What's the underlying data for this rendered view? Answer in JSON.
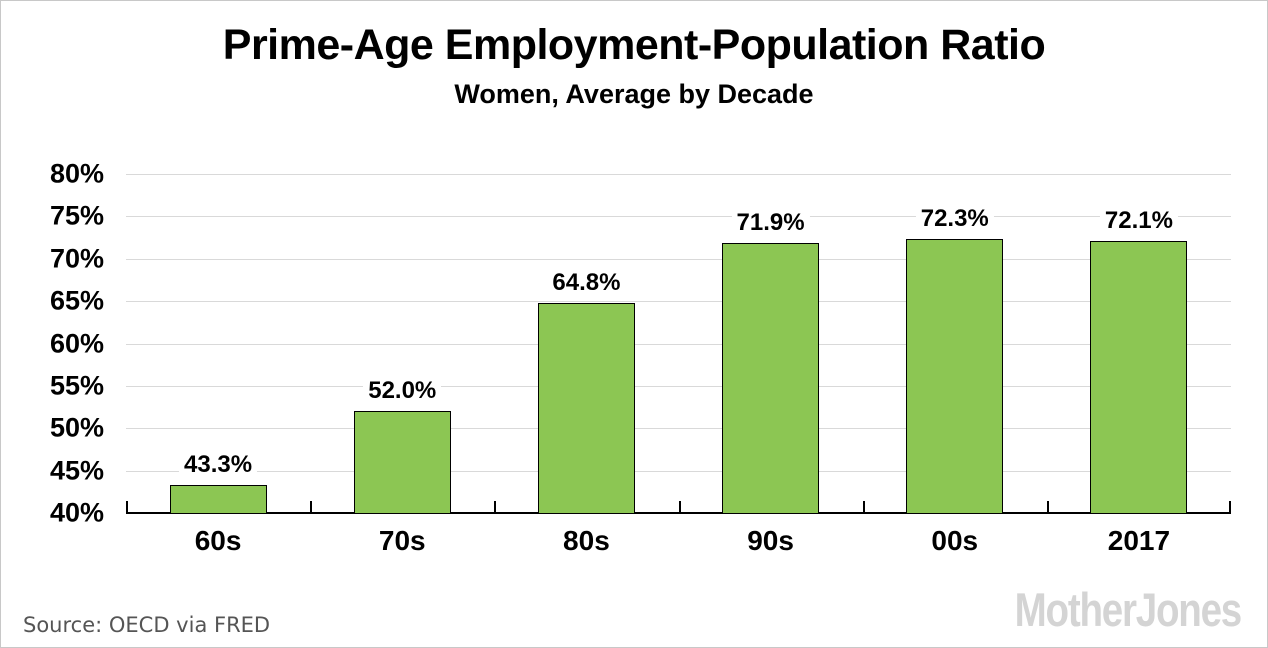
{
  "header": {
    "title": "Prime-Age Employment-Population Ratio",
    "subtitle": "Women, Average by Decade"
  },
  "footer": {
    "source": "Source: OECD via FRED",
    "brand": "MotherJones"
  },
  "chart_data": {
    "type": "bar",
    "title": "Prime-Age Employment-Population Ratio",
    "subtitle": "Women, Average by Decade",
    "categories": [
      "60s",
      "70s",
      "80s",
      "90s",
      "00s",
      "2017"
    ],
    "values": [
      43.3,
      52.0,
      64.8,
      71.9,
      72.3,
      72.1
    ],
    "value_labels": [
      "43.3%",
      "52.0%",
      "64.8%",
      "71.9%",
      "72.3%",
      "72.1%"
    ],
    "ylim": [
      40,
      80
    ],
    "ytick_step": 5,
    "ytick_labels": [
      "40%",
      "45%",
      "50%",
      "55%",
      "60%",
      "65%",
      "70%",
      "75%",
      "80%"
    ],
    "grid": true,
    "legend": "none",
    "bar_color": "#8cc653",
    "bar_border_color": "#000000",
    "gridline_color": "#d9d9d9",
    "axis_color": "#000000",
    "source_text_color": "#555555",
    "brand_color": "#d4d4d4"
  }
}
